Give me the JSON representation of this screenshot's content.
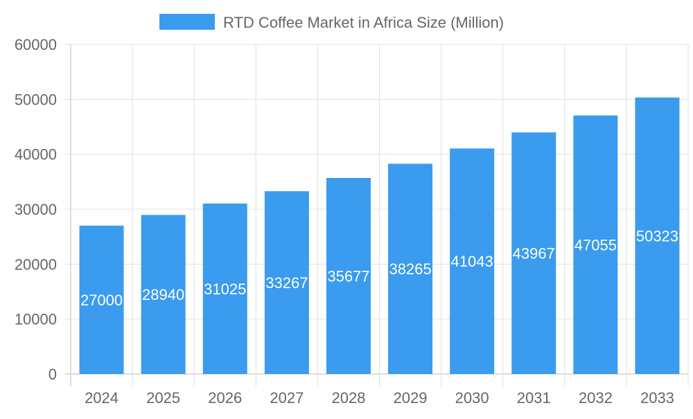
{
  "chart_data": {
    "type": "bar",
    "title": "",
    "xlabel": "",
    "ylabel": "",
    "categories": [
      "2024",
      "2025",
      "2026",
      "2027",
      "2028",
      "2029",
      "2030",
      "2031",
      "2032",
      "2033"
    ],
    "series": [
      {
        "name": "RTD Coffee Market in Africa Size (Million)",
        "values": [
          27000,
          28940,
          31025,
          33267,
          35677,
          38265,
          41043,
          43967,
          47055,
          50323
        ],
        "color": "#3a9bef"
      }
    ],
    "ylim": [
      0,
      60000
    ],
    "yticks": [
      0,
      10000,
      20000,
      30000,
      40000,
      50000,
      60000
    ],
    "grid": true,
    "legend": "top",
    "data_labels": true
  }
}
